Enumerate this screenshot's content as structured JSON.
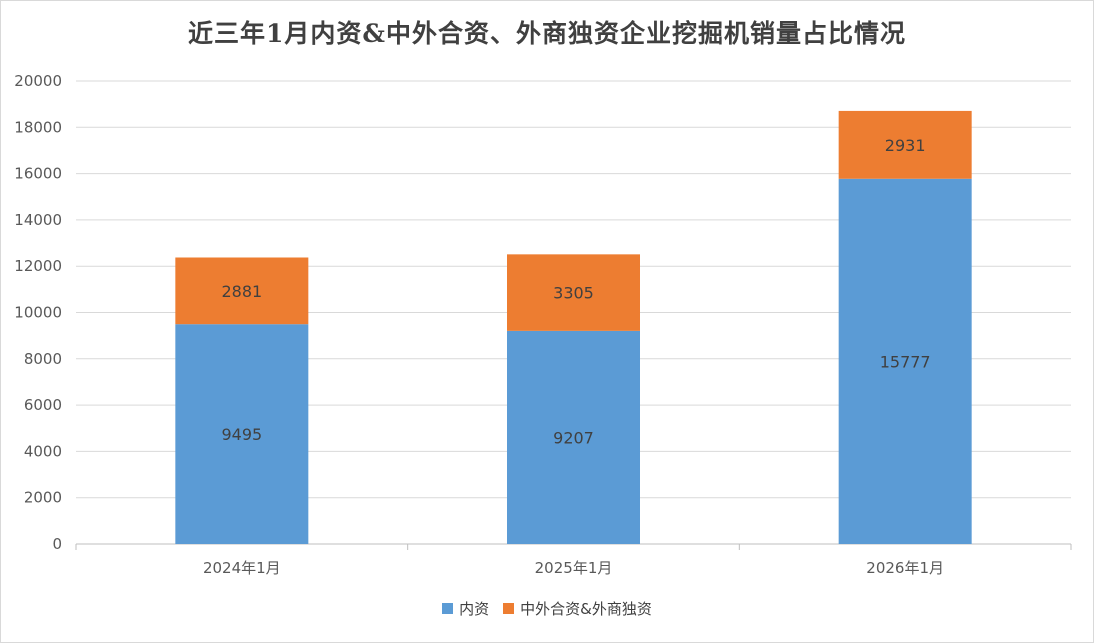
{
  "chart_data": {
    "type": "bar",
    "stacked": true,
    "title": "近三年1月内资&中外合资、外商独资企业挖掘机销量占比情况",
    "categories": [
      "2024年1月",
      "2025年1月",
      "2026年1月"
    ],
    "series": [
      {
        "name": "内资",
        "color": "#5b9bd5",
        "values": [
          9495,
          9207,
          15777
        ]
      },
      {
        "name": "中外合资&外商独资",
        "color": "#ed7d31",
        "values": [
          2881,
          3305,
          2931
        ]
      }
    ],
    "ylim": [
      0,
      20000
    ],
    "yticks": [
      "0",
      "2000",
      "4000",
      "6000",
      "8000",
      "10000",
      "12000",
      "14000",
      "16000",
      "18000",
      "20000"
    ],
    "grid": true,
    "legend_position": "bottom"
  }
}
